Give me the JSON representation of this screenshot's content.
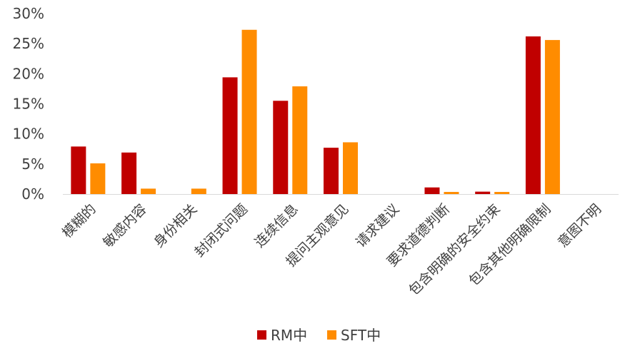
{
  "chart_data": {
    "type": "bar",
    "categories": [
      "模糊的",
      "敏感内容",
      "身份相关",
      "封闭式问题",
      "连续信息",
      "提问主观意见",
      "请求建议",
      "要求道德判断",
      "包含明确的安全约束",
      "包含其他明确限制",
      "意图不明"
    ],
    "series": [
      {
        "name": "RM中",
        "color": "#C00000",
        "values": [
          7.9,
          6.9,
          0.0,
          19.4,
          15.5,
          7.7,
          0.0,
          1.1,
          0.4,
          26.2,
          0.0
        ]
      },
      {
        "name": "SFT中",
        "color": "#FF8C00",
        "values": [
          5.1,
          0.9,
          0.9,
          27.3,
          17.9,
          8.6,
          0.0,
          0.35,
          0.35,
          25.6,
          0.0
        ]
      }
    ],
    "yticks": [
      "0%",
      "5%",
      "10%",
      "15%",
      "20%",
      "25%",
      "30%"
    ],
    "ylim": [
      0,
      30
    ],
    "grid": false,
    "legend_position": "bottom",
    "axis_color": "#d9d9d9",
    "title": "",
    "xlabel": "",
    "ylabel": ""
  }
}
